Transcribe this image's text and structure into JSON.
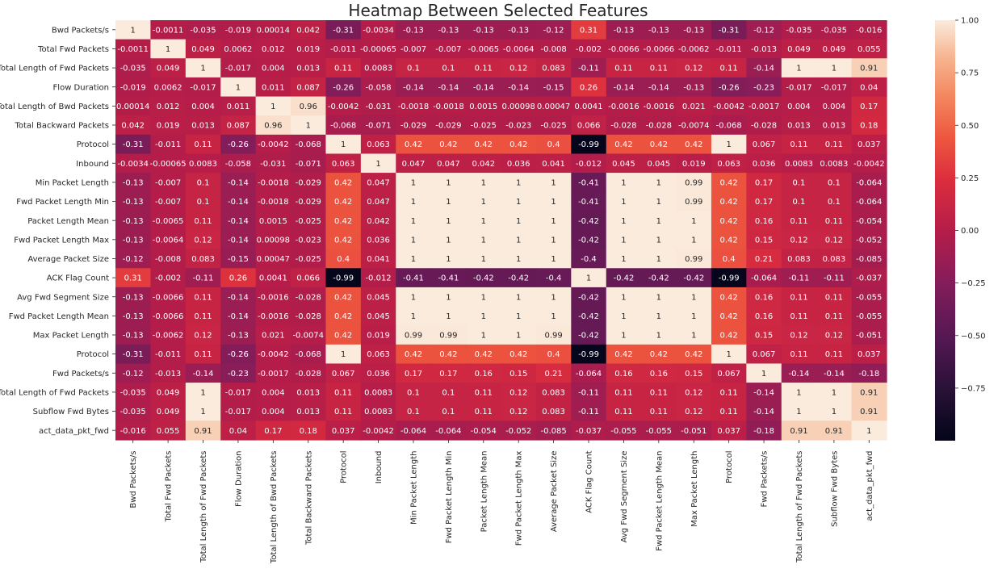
{
  "chart_data": {
    "type": "heatmap",
    "title": "Heatmap Between Selected Features",
    "xlabel": "",
    "ylabel": "",
    "labels": [
      "Bwd Packets/s",
      "Total Fwd Packets",
      "Total Length of Fwd Packets",
      "Flow Duration",
      "Total Length of Bwd Packets",
      "Total Backward Packets",
      "Protocol",
      "Inbound",
      "Min Packet Length",
      "Fwd Packet Length Min",
      "Packet Length Mean",
      "Fwd Packet Length Max",
      "Average Packet Size",
      "ACK Flag Count",
      "Avg Fwd Segment Size",
      "Fwd Packet Length Mean",
      "Max Packet Length",
      "Protocol",
      "Fwd Packets/s",
      "Total Length of Fwd Packets",
      "Subflow Fwd Bytes",
      "act_data_pkt_fwd"
    ],
    "matrix": [
      [
        "1",
        "-0.0011",
        "-0.035",
        "-0.019",
        "0.00014",
        "0.042",
        "-0.31",
        "-0.0034",
        "-0.13",
        "-0.13",
        "-0.13",
        "-0.13",
        "-0.12",
        "0.31",
        "-0.13",
        "-0.13",
        "-0.13",
        "-0.31",
        "-0.12",
        "-0.035",
        "-0.035",
        "-0.016"
      ],
      [
        "-0.0011",
        "1",
        "0.049",
        "0.0062",
        "0.012",
        "0.019",
        "-0.011",
        "-0.00065",
        "-0.007",
        "-0.007",
        "-0.0065",
        "-0.0064",
        "-0.008",
        "-0.002",
        "-0.0066",
        "-0.0066",
        "-0.0062",
        "-0.011",
        "-0.013",
        "0.049",
        "0.049",
        "0.055"
      ],
      [
        "-0.035",
        "0.049",
        "1",
        "-0.017",
        "0.004",
        "0.013",
        "0.11",
        "0.0083",
        "0.1",
        "0.1",
        "0.11",
        "0.12",
        "0.083",
        "-0.11",
        "0.11",
        "0.11",
        "0.12",
        "0.11",
        "-0.14",
        "1",
        "1",
        "0.91"
      ],
      [
        "-0.019",
        "0.0062",
        "-0.017",
        "1",
        "0.011",
        "0.087",
        "-0.26",
        "-0.058",
        "-0.14",
        "-0.14",
        "-0.14",
        "-0.14",
        "-0.15",
        "0.26",
        "-0.14",
        "-0.14",
        "-0.13",
        "-0.26",
        "-0.23",
        "-0.017",
        "-0.017",
        "0.04"
      ],
      [
        "0.00014",
        "0.012",
        "0.004",
        "0.011",
        "1",
        "0.96",
        "-0.0042",
        "-0.031",
        "-0.0018",
        "-0.0018",
        "0.0015",
        "0.00098",
        "0.00047",
        "0.0041",
        "-0.0016",
        "-0.0016",
        "0.021",
        "-0.0042",
        "-0.0017",
        "0.004",
        "0.004",
        "0.17"
      ],
      [
        "0.042",
        "0.019",
        "0.013",
        "0.087",
        "0.96",
        "1",
        "-0.068",
        "-0.071",
        "-0.029",
        "-0.029",
        "-0.025",
        "-0.023",
        "-0.025",
        "0.066",
        "-0.028",
        "-0.028",
        "-0.0074",
        "-0.068",
        "-0.028",
        "0.013",
        "0.013",
        "0.18"
      ],
      [
        "-0.31",
        "-0.011",
        "0.11",
        "-0.26",
        "-0.0042",
        "-0.068",
        "1",
        "0.063",
        "0.42",
        "0.42",
        "0.42",
        "0.42",
        "0.4",
        "-0.99",
        "0.42",
        "0.42",
        "0.42",
        "1",
        "0.067",
        "0.11",
        "0.11",
        "0.037"
      ],
      [
        "-0.0034",
        "-0.00065",
        "0.0083",
        "-0.058",
        "-0.031",
        "-0.071",
        "0.063",
        "1",
        "0.047",
        "0.047",
        "0.042",
        "0.036",
        "0.041",
        "-0.012",
        "0.045",
        "0.045",
        "0.019",
        "0.063",
        "0.036",
        "0.0083",
        "0.0083",
        "-0.0042"
      ],
      [
        "-0.13",
        "-0.007",
        "0.1",
        "-0.14",
        "-0.0018",
        "-0.029",
        "0.42",
        "0.047",
        "1",
        "1",
        "1",
        "1",
        "1",
        "-0.41",
        "1",
        "1",
        "0.99",
        "0.42",
        "0.17",
        "0.1",
        "0.1",
        "-0.064"
      ],
      [
        "-0.13",
        "-0.007",
        "0.1",
        "-0.14",
        "-0.0018",
        "-0.029",
        "0.42",
        "0.047",
        "1",
        "1",
        "1",
        "1",
        "1",
        "-0.41",
        "1",
        "1",
        "0.99",
        "0.42",
        "0.17",
        "0.1",
        "0.1",
        "-0.064"
      ],
      [
        "-0.13",
        "-0.0065",
        "0.11",
        "-0.14",
        "0.0015",
        "-0.025",
        "0.42",
        "0.042",
        "1",
        "1",
        "1",
        "1",
        "1",
        "-0.42",
        "1",
        "1",
        "1",
        "0.42",
        "0.16",
        "0.11",
        "0.11",
        "-0.054"
      ],
      [
        "-0.13",
        "-0.0064",
        "0.12",
        "-0.14",
        "0.00098",
        "-0.023",
        "0.42",
        "0.036",
        "1",
        "1",
        "1",
        "1",
        "1",
        "-0.42",
        "1",
        "1",
        "1",
        "0.42",
        "0.15",
        "0.12",
        "0.12",
        "-0.052"
      ],
      [
        "-0.12",
        "-0.008",
        "0.083",
        "-0.15",
        "0.00047",
        "-0.025",
        "0.4",
        "0.041",
        "1",
        "1",
        "1",
        "1",
        "1",
        "-0.4",
        "1",
        "1",
        "0.99",
        "0.4",
        "0.21",
        "0.083",
        "0.083",
        "-0.085"
      ],
      [
        "0.31",
        "-0.002",
        "-0.11",
        "0.26",
        "0.0041",
        "0.066",
        "-0.99",
        "-0.012",
        "-0.41",
        "-0.41",
        "-0.42",
        "-0.42",
        "-0.4",
        "1",
        "-0.42",
        "-0.42",
        "-0.42",
        "-0.99",
        "-0.064",
        "-0.11",
        "-0.11",
        "-0.037"
      ],
      [
        "-0.13",
        "-0.0066",
        "0.11",
        "-0.14",
        "-0.0016",
        "-0.028",
        "0.42",
        "0.045",
        "1",
        "1",
        "1",
        "1",
        "1",
        "-0.42",
        "1",
        "1",
        "1",
        "0.42",
        "0.16",
        "0.11",
        "0.11",
        "-0.055"
      ],
      [
        "-0.13",
        "-0.0066",
        "0.11",
        "-0.14",
        "-0.0016",
        "-0.028",
        "0.42",
        "0.045",
        "1",
        "1",
        "1",
        "1",
        "1",
        "-0.42",
        "1",
        "1",
        "1",
        "0.42",
        "0.16",
        "0.11",
        "0.11",
        "-0.055"
      ],
      [
        "-0.13",
        "-0.0062",
        "0.12",
        "-0.13",
        "0.021",
        "-0.0074",
        "0.42",
        "0.019",
        "0.99",
        "0.99",
        "1",
        "1",
        "0.99",
        "-0.42",
        "1",
        "1",
        "1",
        "0.42",
        "0.15",
        "0.12",
        "0.12",
        "-0.051"
      ],
      [
        "-0.31",
        "-0.011",
        "0.11",
        "-0.26",
        "-0.0042",
        "-0.068",
        "1",
        "0.063",
        "0.42",
        "0.42",
        "0.42",
        "0.42",
        "0.4",
        "-0.99",
        "0.42",
        "0.42",
        "0.42",
        "1",
        "0.067",
        "0.11",
        "0.11",
        "0.037"
      ],
      [
        "-0.12",
        "-0.013",
        "-0.14",
        "-0.23",
        "-0.0017",
        "-0.028",
        "0.067",
        "0.036",
        "0.17",
        "0.17",
        "0.16",
        "0.15",
        "0.21",
        "-0.064",
        "0.16",
        "0.16",
        "0.15",
        "0.067",
        "1",
        "-0.14",
        "-0.14",
        "-0.18"
      ],
      [
        "-0.035",
        "0.049",
        "1",
        "-0.017",
        "0.004",
        "0.013",
        "0.11",
        "0.0083",
        "0.1",
        "0.1",
        "0.11",
        "0.12",
        "0.083",
        "-0.11",
        "0.11",
        "0.11",
        "0.12",
        "0.11",
        "-0.14",
        "1",
        "1",
        "0.91"
      ],
      [
        "-0.035",
        "0.049",
        "1",
        "-0.017",
        "0.004",
        "0.013",
        "0.11",
        "0.0083",
        "0.1",
        "0.1",
        "0.11",
        "0.12",
        "0.083",
        "-0.11",
        "0.11",
        "0.11",
        "0.12",
        "0.11",
        "-0.14",
        "1",
        "1",
        "0.91"
      ],
      [
        "-0.016",
        "0.055",
        "0.91",
        "0.04",
        "0.17",
        "0.18",
        "0.037",
        "-0.0042",
        "-0.064",
        "-0.064",
        "-0.054",
        "-0.052",
        "-0.085",
        "-0.037",
        "-0.055",
        "-0.055",
        "-0.051",
        "0.037",
        "-0.18",
        "0.91",
        "0.91",
        "1"
      ]
    ],
    "colorbar": {
      "range": [
        -1.0,
        1.0
      ],
      "ticks": [
        "1.00",
        "0.75",
        "0.50",
        "0.25",
        "0.00",
        "−0.25",
        "−0.50",
        "−0.75"
      ],
      "colormap": "rocket"
    },
    "grid": false,
    "legend": "none"
  }
}
